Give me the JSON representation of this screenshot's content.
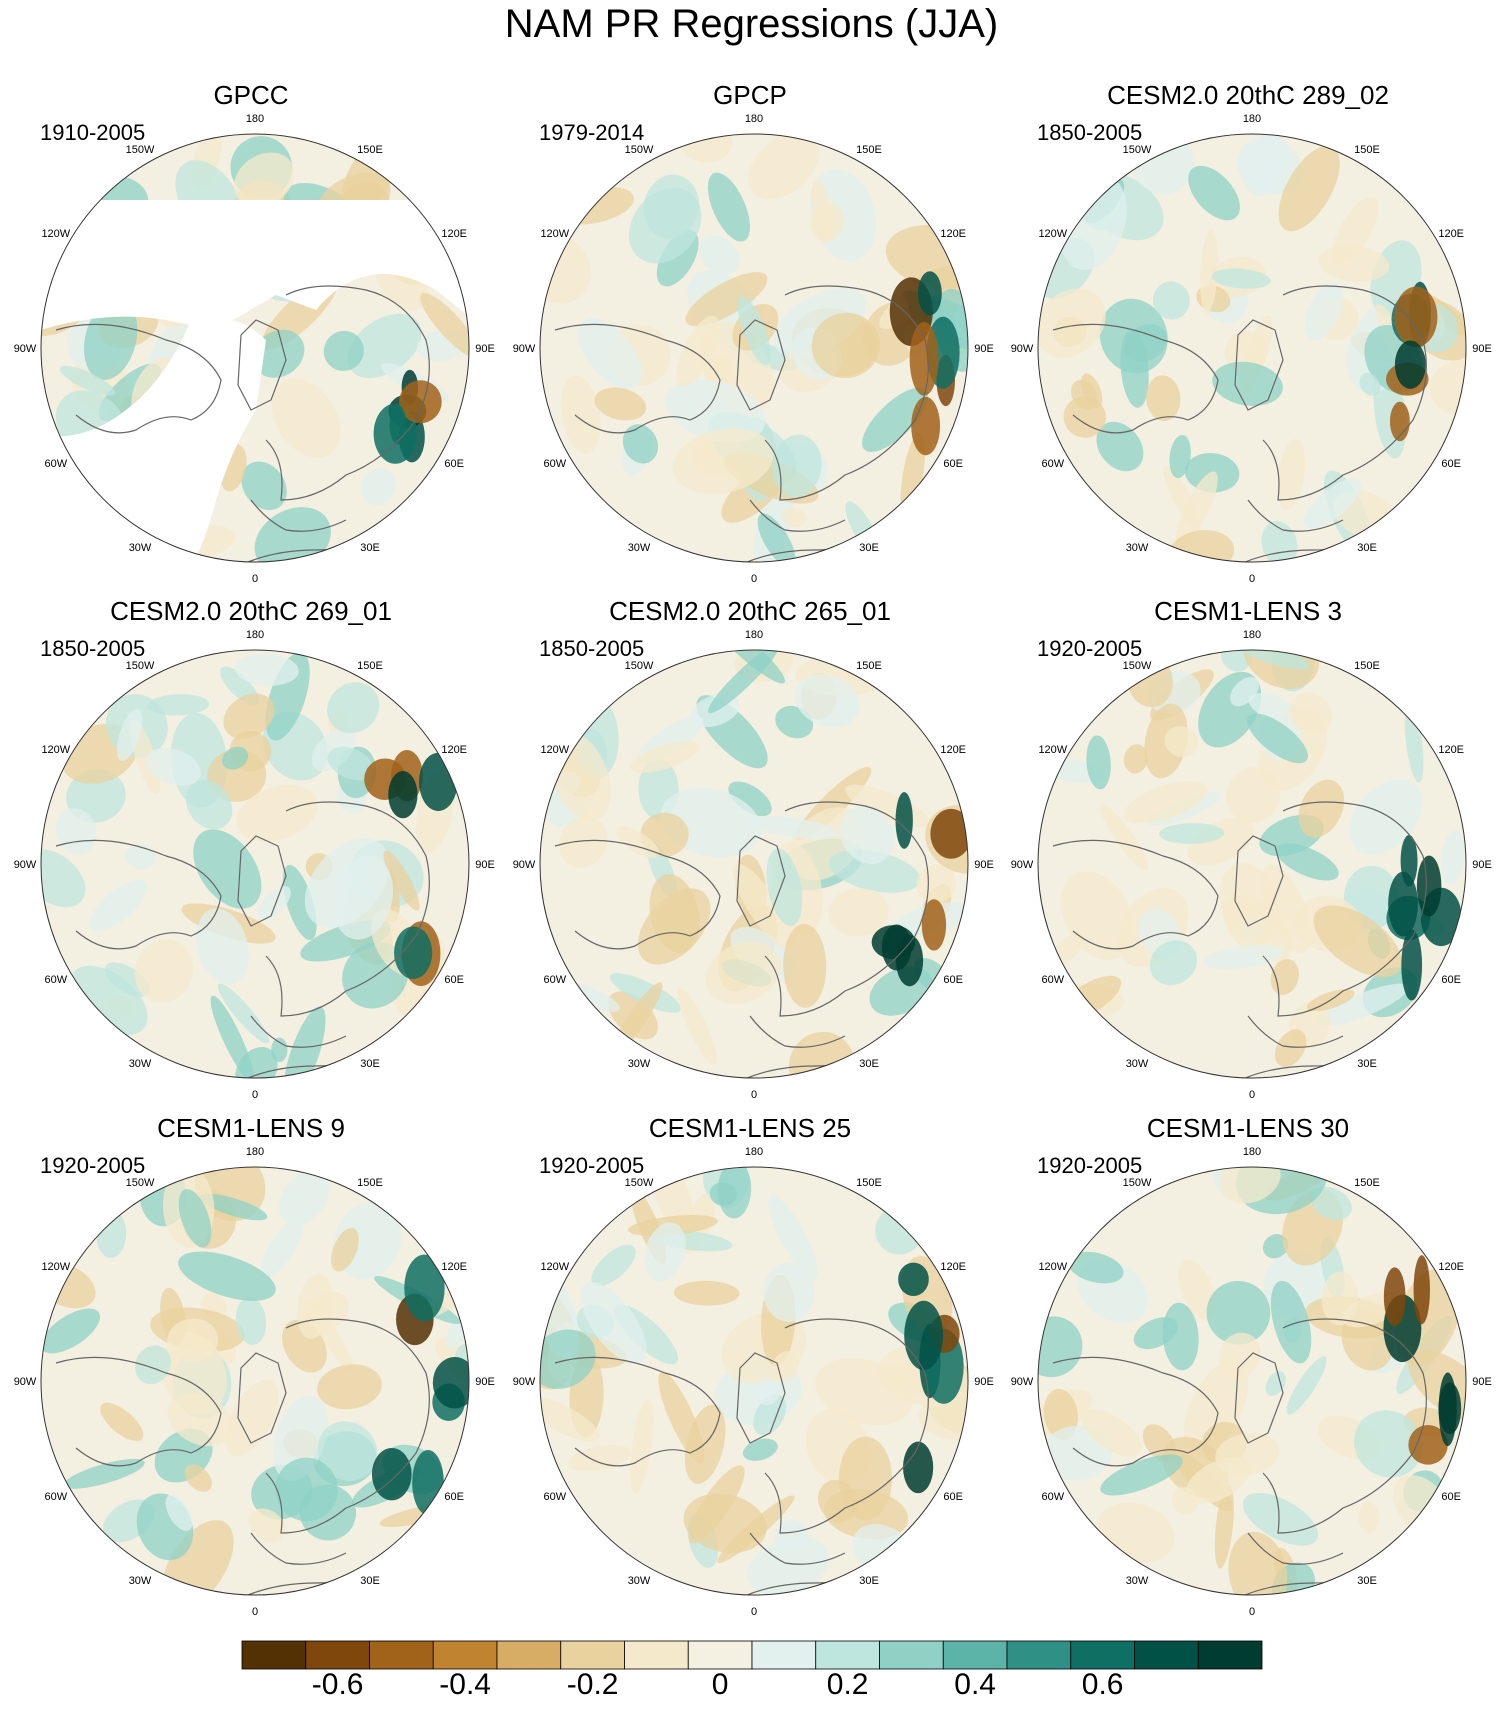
{
  "title": "NAM PR Regressions (JJA)",
  "panels": [
    {
      "title": "GPCC",
      "period": "1910-2005",
      "masked": true
    },
    {
      "title": "GPCP",
      "period": "1979-2014",
      "masked": false
    },
    {
      "title": "CESM2.0 20thC 289_02",
      "period": "1850-2005",
      "masked": false
    },
    {
      "title": "CESM2.0 20thC 269_01",
      "period": "1850-2005",
      "masked": false
    },
    {
      "title": "CESM2.0 20thC 265_01",
      "period": "1850-2005",
      "masked": false
    },
    {
      "title": "CESM1-LENS 3",
      "period": "1920-2005",
      "masked": false
    },
    {
      "title": "CESM1-LENS 9",
      "period": "1920-2005",
      "masked": false
    },
    {
      "title": "CESM1-LENS 25",
      "period": "1920-2005",
      "masked": false
    },
    {
      "title": "CESM1-LENS 30",
      "period": "1920-2005",
      "masked": false
    }
  ],
  "longitude_labels": [
    "180",
    "150E",
    "120E",
    "90E",
    "60E",
    "30E",
    "0",
    "30W",
    "60W",
    "90W",
    "120W",
    "150W"
  ],
  "colorbar": {
    "colors": [
      "#543005",
      "#7f470c",
      "#a1621a",
      "#c0832f",
      "#d7ad65",
      "#e9d29e",
      "#f5e9cc",
      "#f4f0e2",
      "#e2f0ee",
      "#bfe6de",
      "#8fd2c5",
      "#5cb3a7",
      "#2f9186",
      "#0f6f62",
      "#025147",
      "#003c30"
    ],
    "tick_labels": [
      "-0.6",
      "-0.4",
      "-0.2",
      "0",
      "0.2",
      "0.4",
      "0.6"
    ],
    "tick_values": [
      -0.6,
      -0.4,
      -0.2,
      0,
      0.2,
      0.4,
      0.6
    ]
  }
}
